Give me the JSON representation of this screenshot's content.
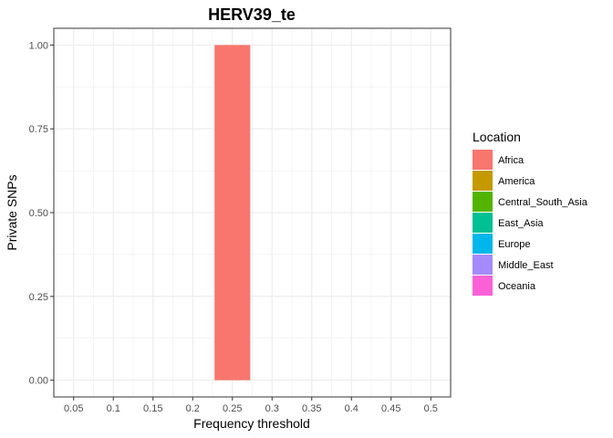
{
  "chart_data": {
    "type": "bar",
    "title": "HERV39_te",
    "xlabel": "Frequency threshold",
    "ylabel": "Private SNPs",
    "x_ticks": [
      "0.05",
      "0.1",
      "0.15",
      "0.2",
      "0.25",
      "0.3",
      "0.35",
      "0.4",
      "0.45",
      "0.5"
    ],
    "y_ticks": [
      "0.00",
      "0.25",
      "0.50",
      "0.75",
      "1.00"
    ],
    "xlim": [
      0.025,
      0.525
    ],
    "ylim": [
      -0.05,
      1.05
    ],
    "bar_width": 0.045,
    "grid": true,
    "legend": {
      "title": "Location",
      "position": "right",
      "entries": [
        {
          "name": "Africa",
          "color": "#F8766D"
        },
        {
          "name": "America",
          "color": "#C49A00"
        },
        {
          "name": "Central_South_Asia",
          "color": "#53B400"
        },
        {
          "name": "East_Asia",
          "color": "#00C094"
        },
        {
          "name": "Europe",
          "color": "#00B6EB"
        },
        {
          "name": "Middle_East",
          "color": "#A58AFF"
        },
        {
          "name": "Oceania",
          "color": "#FB61D7"
        }
      ]
    },
    "series": [
      {
        "name": "Africa",
        "color": "#F8766D",
        "points": [
          {
            "x": 0.25,
            "y": 1.0
          }
        ]
      }
    ]
  }
}
